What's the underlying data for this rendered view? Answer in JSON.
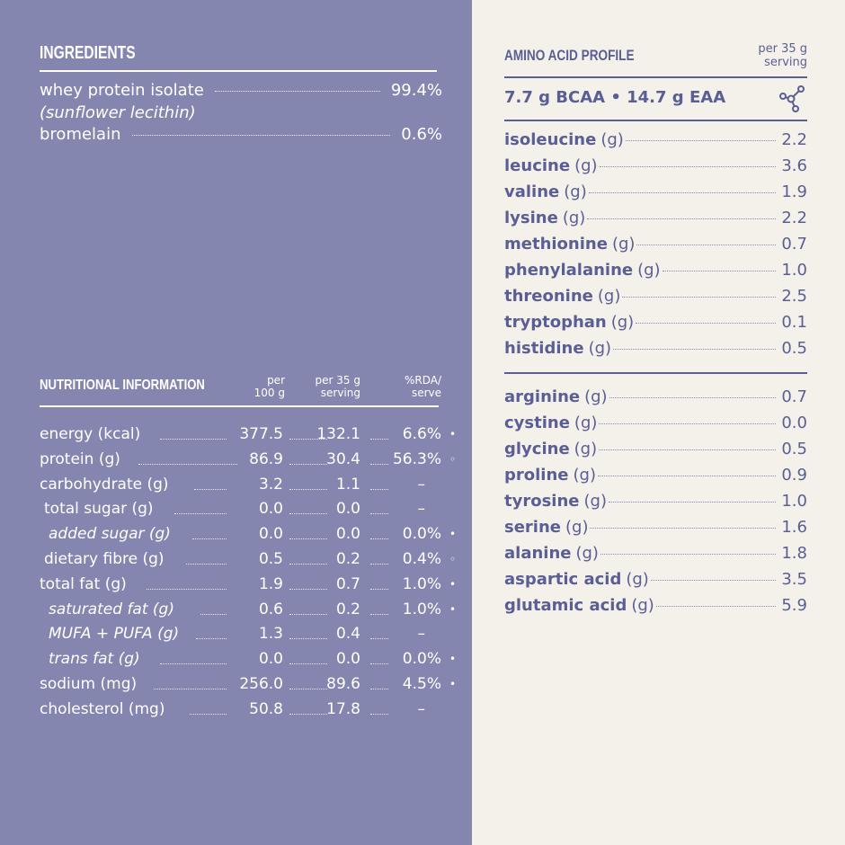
{
  "ingredients": {
    "title": "INGREDIENTS",
    "items": [
      {
        "label": "whey protein isolate",
        "value": "99.4%"
      },
      {
        "label": "bromelain",
        "value": "0.6%"
      }
    ],
    "sub_note": "(sunflower lecithin)"
  },
  "nutrition": {
    "title": "NUTRITIONAL INFORMATION",
    "col_per100_l1": "per",
    "col_per100_l2": "100 g",
    "col_serv_l1": "per 35 g",
    "col_serv_l2": "serving",
    "col_rda_l1": "%RDA/",
    "col_rda_l2": "serve",
    "rows": [
      {
        "label": "energy (kcal)",
        "per100": "377.5",
        "serving": "132.1",
        "rda": "6.6%",
        "mark": "•"
      },
      {
        "label": "protein (g)",
        "per100": "86.9",
        "serving": "30.4",
        "rda": "56.3%",
        "mark": "◦"
      },
      {
        "label": "carbohydrate (g)",
        "per100": "3.2",
        "serving": "1.1",
        "rda": "–",
        "mark": ""
      },
      {
        "label": "total sugar (g)",
        "per100": "0.0",
        "serving": "0.0",
        "rda": "–",
        "mark": ""
      },
      {
        "label": "added sugar (g)",
        "per100": "0.0",
        "serving": "0.0",
        "rda": "0.0%",
        "mark": "•"
      },
      {
        "label": "dietary fibre (g)",
        "per100": "0.5",
        "serving": "0.2",
        "rda": "0.4%",
        "mark": "◦"
      },
      {
        "label": "total fat (g)",
        "per100": "1.9",
        "serving": "0.7",
        "rda": "1.0%",
        "mark": "•"
      },
      {
        "label": "saturated fat (g)",
        "per100": "0.6",
        "serving": "0.2",
        "rda": "1.0%",
        "mark": "•"
      },
      {
        "label": "MUFA + PUFA (g)",
        "per100": "1.3",
        "serving": "0.4",
        "rda": "–",
        "mark": ""
      },
      {
        "label": "trans fat (g)",
        "per100": "0.0",
        "serving": "0.0",
        "rda": "0.0%",
        "mark": "•"
      },
      {
        "label": "sodium (mg)",
        "per100": "256.0",
        "serving": "89.6",
        "rda": "4.5%",
        "mark": "•"
      },
      {
        "label": "cholesterol (mg)",
        "per100": "50.8",
        "serving": "17.8",
        "rda": "–",
        "mark": ""
      }
    ]
  },
  "amino": {
    "title": "AMINO ACID PROFILE",
    "serving_l1": "per 35 g",
    "serving_l2": "serving",
    "summary": "7.7 g BCAA  •  14.7 g EAA",
    "icon": "molecule-icon",
    "essential": [
      {
        "name": "isoleucine",
        "unit": "(g)",
        "value": "2.2"
      },
      {
        "name": "leucine",
        "unit": "(g)",
        "value": "3.6"
      },
      {
        "name": "valine",
        "unit": "(g)",
        "value": "1.9"
      },
      {
        "name": "lysine",
        "unit": "(g)",
        "value": "2.2"
      },
      {
        "name": "methionine",
        "unit": "(g)",
        "value": "0.7"
      },
      {
        "name": "phenylalanine",
        "unit": "(g)",
        "value": "1.0"
      },
      {
        "name": "threonine",
        "unit": "(g)",
        "value": "2.5"
      },
      {
        "name": "tryptophan",
        "unit": "(g)",
        "value": "0.1"
      },
      {
        "name": "histidine",
        "unit": "(g)",
        "value": "0.5"
      }
    ],
    "nonessential": [
      {
        "name": "arginine",
        "unit": "(g)",
        "value": "0.7"
      },
      {
        "name": "cystine",
        "unit": "(g)",
        "value": "0.0"
      },
      {
        "name": "glycine",
        "unit": "(g)",
        "value": "0.5"
      },
      {
        "name": "proline",
        "unit": "(g)",
        "value": "0.9"
      },
      {
        "name": "tyrosine",
        "unit": "(g)",
        "value": "1.0"
      },
      {
        "name": "serine",
        "unit": "(g)",
        "value": "1.6"
      },
      {
        "name": "alanine",
        "unit": "(g)",
        "value": "1.8"
      },
      {
        "name": "aspartic acid",
        "unit": "(g)",
        "value": "3.5"
      },
      {
        "name": "glutamic acid",
        "unit": "(g)",
        "value": "5.9"
      }
    ]
  },
  "colors": {
    "left_bg": "#8586b0",
    "right_bg": "#f4f1ea",
    "accent": "#5b5e95"
  }
}
